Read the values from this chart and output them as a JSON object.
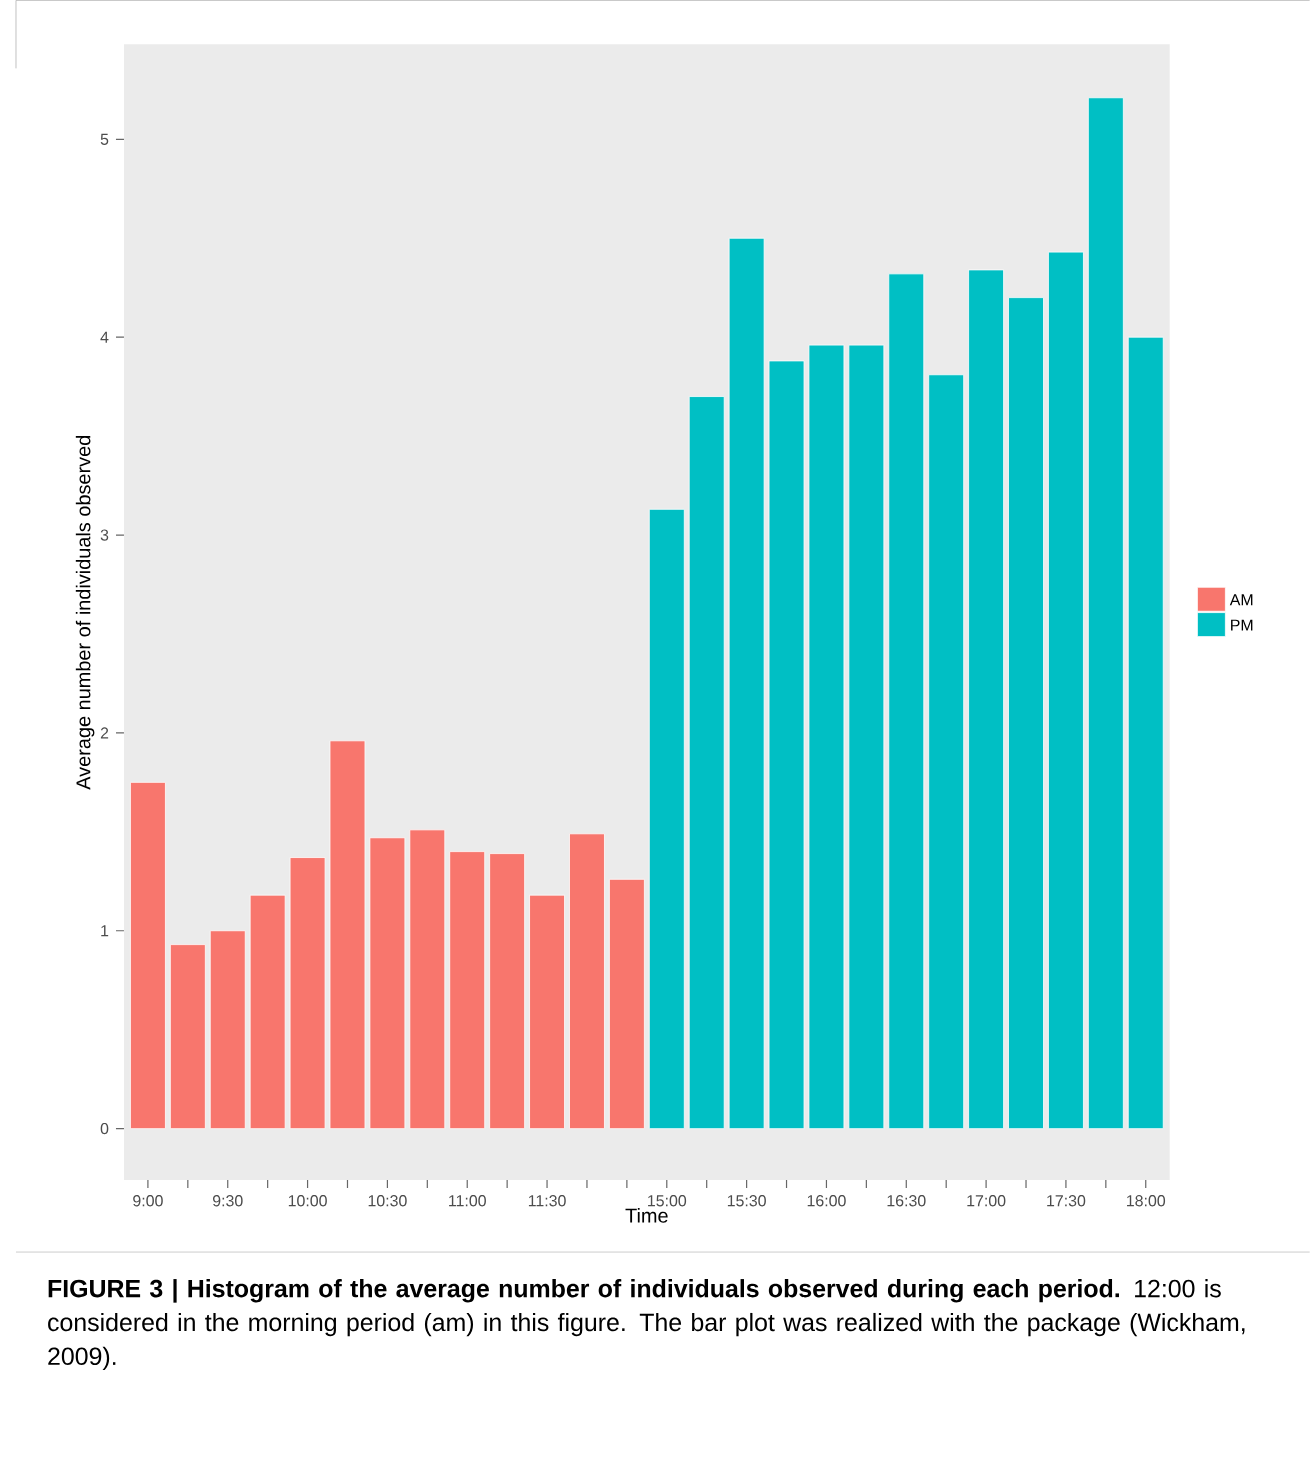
{
  "chart_data": {
    "type": "bar",
    "xlabel": "Time",
    "ylabel": "Average number of individuals observed",
    "categories": [
      "9:00",
      null,
      "9:30",
      null,
      "10:00",
      null,
      "10:30",
      null,
      "11:00",
      null,
      "11:30",
      null,
      null,
      "15:00",
      null,
      "15:30",
      null,
      "16:00",
      null,
      "16:30",
      null,
      "17:00",
      null,
      "17:30",
      null,
      "18:00"
    ],
    "series": [
      {
        "name": "AM",
        "color": "#f8766d",
        "values": [
          1.75,
          0.93,
          1.0,
          1.18,
          1.37,
          1.96,
          1.47,
          1.51,
          1.4,
          1.39,
          1.18,
          1.49,
          1.26,
          null,
          null,
          null,
          null,
          null,
          null,
          null,
          null,
          null,
          null,
          null,
          null,
          null
        ]
      },
      {
        "name": "PM",
        "color": "#00bfc4",
        "values": [
          null,
          null,
          null,
          null,
          null,
          null,
          null,
          null,
          null,
          null,
          null,
          null,
          null,
          3.13,
          3.7,
          4.5,
          3.88,
          3.96,
          3.96,
          4.32,
          3.81,
          4.34,
          4.2,
          4.43,
          5.21,
          4.0
        ]
      }
    ],
    "ylim": [
      -0.26,
      5.48
    ],
    "yticks": [
      0,
      1,
      2,
      3,
      4,
      5
    ],
    "grid": false,
    "legend": "right",
    "annotations": [
      "**FIGURE 3 | Histogram of the average number of individuals observed during each period.** 12:00 is considered in the morning period (am) in this figure. The bar plot was realized with the package (Wickham, 2009)."
    ]
  }
}
